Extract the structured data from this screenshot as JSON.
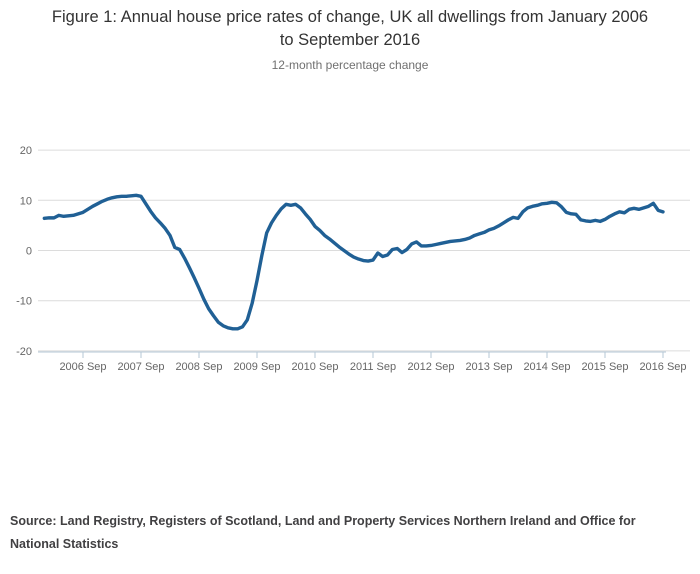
{
  "title": "Figure 1: Annual house price rates of change, UK all dwellings from January 2006 to September 2016",
  "subtitle": "12-month percentage change",
  "source": "Source: Land Registry, Registers of Scotland, Land and Property Services Northern Ireland and Office for National Statistics",
  "colors": {
    "line": "#206095",
    "grid": "#dcdcdc",
    "axis": "#b4c7d6",
    "tick_label": "#666666"
  },
  "chart_data": {
    "type": "line",
    "title": "Figure 1: Annual house price rates of change, UK all dwellings from January 2006 to September 2016",
    "subtitle": "12-month percentage change",
    "xlabel": "",
    "ylabel": "12-month percentage change",
    "ylim": [
      -20,
      20
    ],
    "y_ticks": [
      20,
      10,
      0,
      -10,
      -20
    ],
    "x_tick_labels": [
      "2006 Sep",
      "2007 Sep",
      "2008 Sep",
      "2009 Sep",
      "2010 Sep",
      "2011 Sep",
      "2012 Sep",
      "2013 Sep",
      "2014 Sep",
      "2015 Sep",
      "2016 Sep"
    ],
    "x_start": "2006 Jan",
    "x_end": "2016 Sep",
    "grid": "horizontal only",
    "legend": "none",
    "series": [
      {
        "name": "UK all dwellings 12-month percentage change",
        "frequency": "monthly",
        "values": [
          6.4,
          6.5,
          6.5,
          7.0,
          6.8,
          6.9,
          7.0,
          7.3,
          7.6,
          8.2,
          8.8,
          9.3,
          9.8,
          10.2,
          10.5,
          10.7,
          10.8,
          10.8,
          10.9,
          11.0,
          10.8,
          9.3,
          7.8,
          6.5,
          5.5,
          4.4,
          3.0,
          0.6,
          0.2,
          -1.5,
          -3.4,
          -5.4,
          -7.5,
          -9.7,
          -11.6,
          -13.0,
          -14.3,
          -15.0,
          -15.4,
          -15.6,
          -15.6,
          -15.2,
          -13.8,
          -10.5,
          -6.0,
          -1.0,
          3.5,
          5.5,
          7.0,
          8.3,
          9.2,
          9.0,
          9.2,
          8.5,
          7.3,
          6.2,
          4.8,
          4.0,
          3.0,
          2.3,
          1.5,
          0.7,
          0.0,
          -0.7,
          -1.3,
          -1.7,
          -2.0,
          -2.1,
          -1.9,
          -0.5,
          -1.2,
          -0.9,
          0.2,
          0.4,
          -0.4,
          0.2,
          1.3,
          1.7,
          0.9,
          0.9,
          1.0,
          1.2,
          1.4,
          1.6,
          1.8,
          1.9,
          2.0,
          2.2,
          2.5,
          3.0,
          3.3,
          3.6,
          4.1,
          4.4,
          4.9,
          5.5,
          6.1,
          6.6,
          6.4,
          7.7,
          8.5,
          8.8,
          9.0,
          9.3,
          9.4,
          9.6,
          9.5,
          8.7,
          7.6,
          7.3,
          7.2,
          6.1,
          5.9,
          5.8,
          6.0,
          5.8,
          6.2,
          6.8,
          7.3,
          7.7,
          7.5,
          8.2,
          8.4,
          8.2,
          8.5,
          8.8,
          9.4,
          8.0,
          7.7
        ]
      }
    ]
  }
}
